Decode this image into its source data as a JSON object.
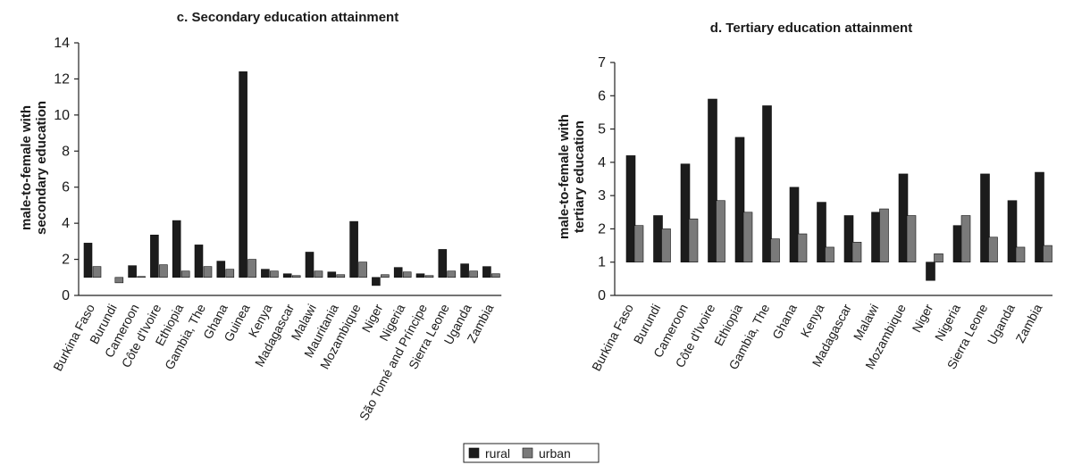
{
  "colors": {
    "rural": "#1c1c1c",
    "urban": "#7a7a7a",
    "axis": "#222222"
  },
  "legend": {
    "items": [
      {
        "key": "rural",
        "label": "rural"
      },
      {
        "key": "urban",
        "label": "urban"
      }
    ],
    "placement": "bottom-center"
  },
  "chart_data": [
    {
      "type": "bar",
      "title": "c. Secondary education attainment",
      "ylabel": [
        "male-to-female with",
        "secondary education"
      ],
      "ylim": [
        0,
        14
      ],
      "baseline": 1,
      "yticks": [
        0,
        2,
        4,
        6,
        8,
        10,
        12,
        14
      ],
      "categories": [
        "Burkina Faso",
        "Burundi",
        "Cameroon",
        "Côte d'Ivoire",
        "Ethiopia",
        "Gambia, The",
        "Ghana",
        "Guinea",
        "Kenya",
        "Madagascar",
        "Malawi",
        "Mauritania",
        "Mozambique",
        "Niger",
        "Nigeria",
        "São Tomé and Príncipe",
        "Sierra Leone",
        "Uganda",
        "Zambia"
      ],
      "series": [
        {
          "name": "rural",
          "values": [
            2.9,
            null,
            1.65,
            3.35,
            4.15,
            2.8,
            1.9,
            12.4,
            1.45,
            1.2,
            2.4,
            1.3,
            4.1,
            0.55,
            1.55,
            1.2,
            2.55,
            1.75,
            1.6
          ]
        },
        {
          "name": "urban",
          "values": [
            1.6,
            0.7,
            1.05,
            1.7,
            1.35,
            1.6,
            1.45,
            2.0,
            1.35,
            1.1,
            1.35,
            1.15,
            1.85,
            1.15,
            1.3,
            1.1,
            1.35,
            1.35,
            1.2
          ]
        }
      ]
    },
    {
      "type": "bar",
      "title": "d. Tertiary education attainment",
      "ylabel": [
        "male-to-female with",
        "tertiary education"
      ],
      "ylim": [
        0,
        7
      ],
      "baseline": 1,
      "yticks": [
        0,
        1,
        2,
        3,
        4,
        5,
        6,
        7
      ],
      "categories": [
        "Burkina Faso",
        "Burundi",
        "Cameroon",
        "Côte d'Ivoire",
        "Ethiopia",
        "Gambia, The",
        "Ghana",
        "Kenya",
        "Madagascar",
        "Malawi",
        "Mozambique",
        "Niger",
        "Nigeria",
        "Sierra Leone",
        "Uganda",
        "Zambia"
      ],
      "series": [
        {
          "name": "rural",
          "values": [
            4.2,
            2.4,
            3.95,
            5.9,
            4.75,
            5.7,
            3.25,
            2.8,
            2.4,
            2.5,
            3.65,
            0.45,
            2.1,
            3.65,
            2.85,
            3.7
          ]
        },
        {
          "name": "urban",
          "values": [
            2.1,
            2.0,
            2.3,
            2.85,
            2.5,
            1.7,
            1.85,
            1.45,
            1.6,
            2.6,
            2.4,
            1.25,
            2.4,
            1.75,
            1.45,
            1.5
          ]
        }
      ]
    }
  ]
}
